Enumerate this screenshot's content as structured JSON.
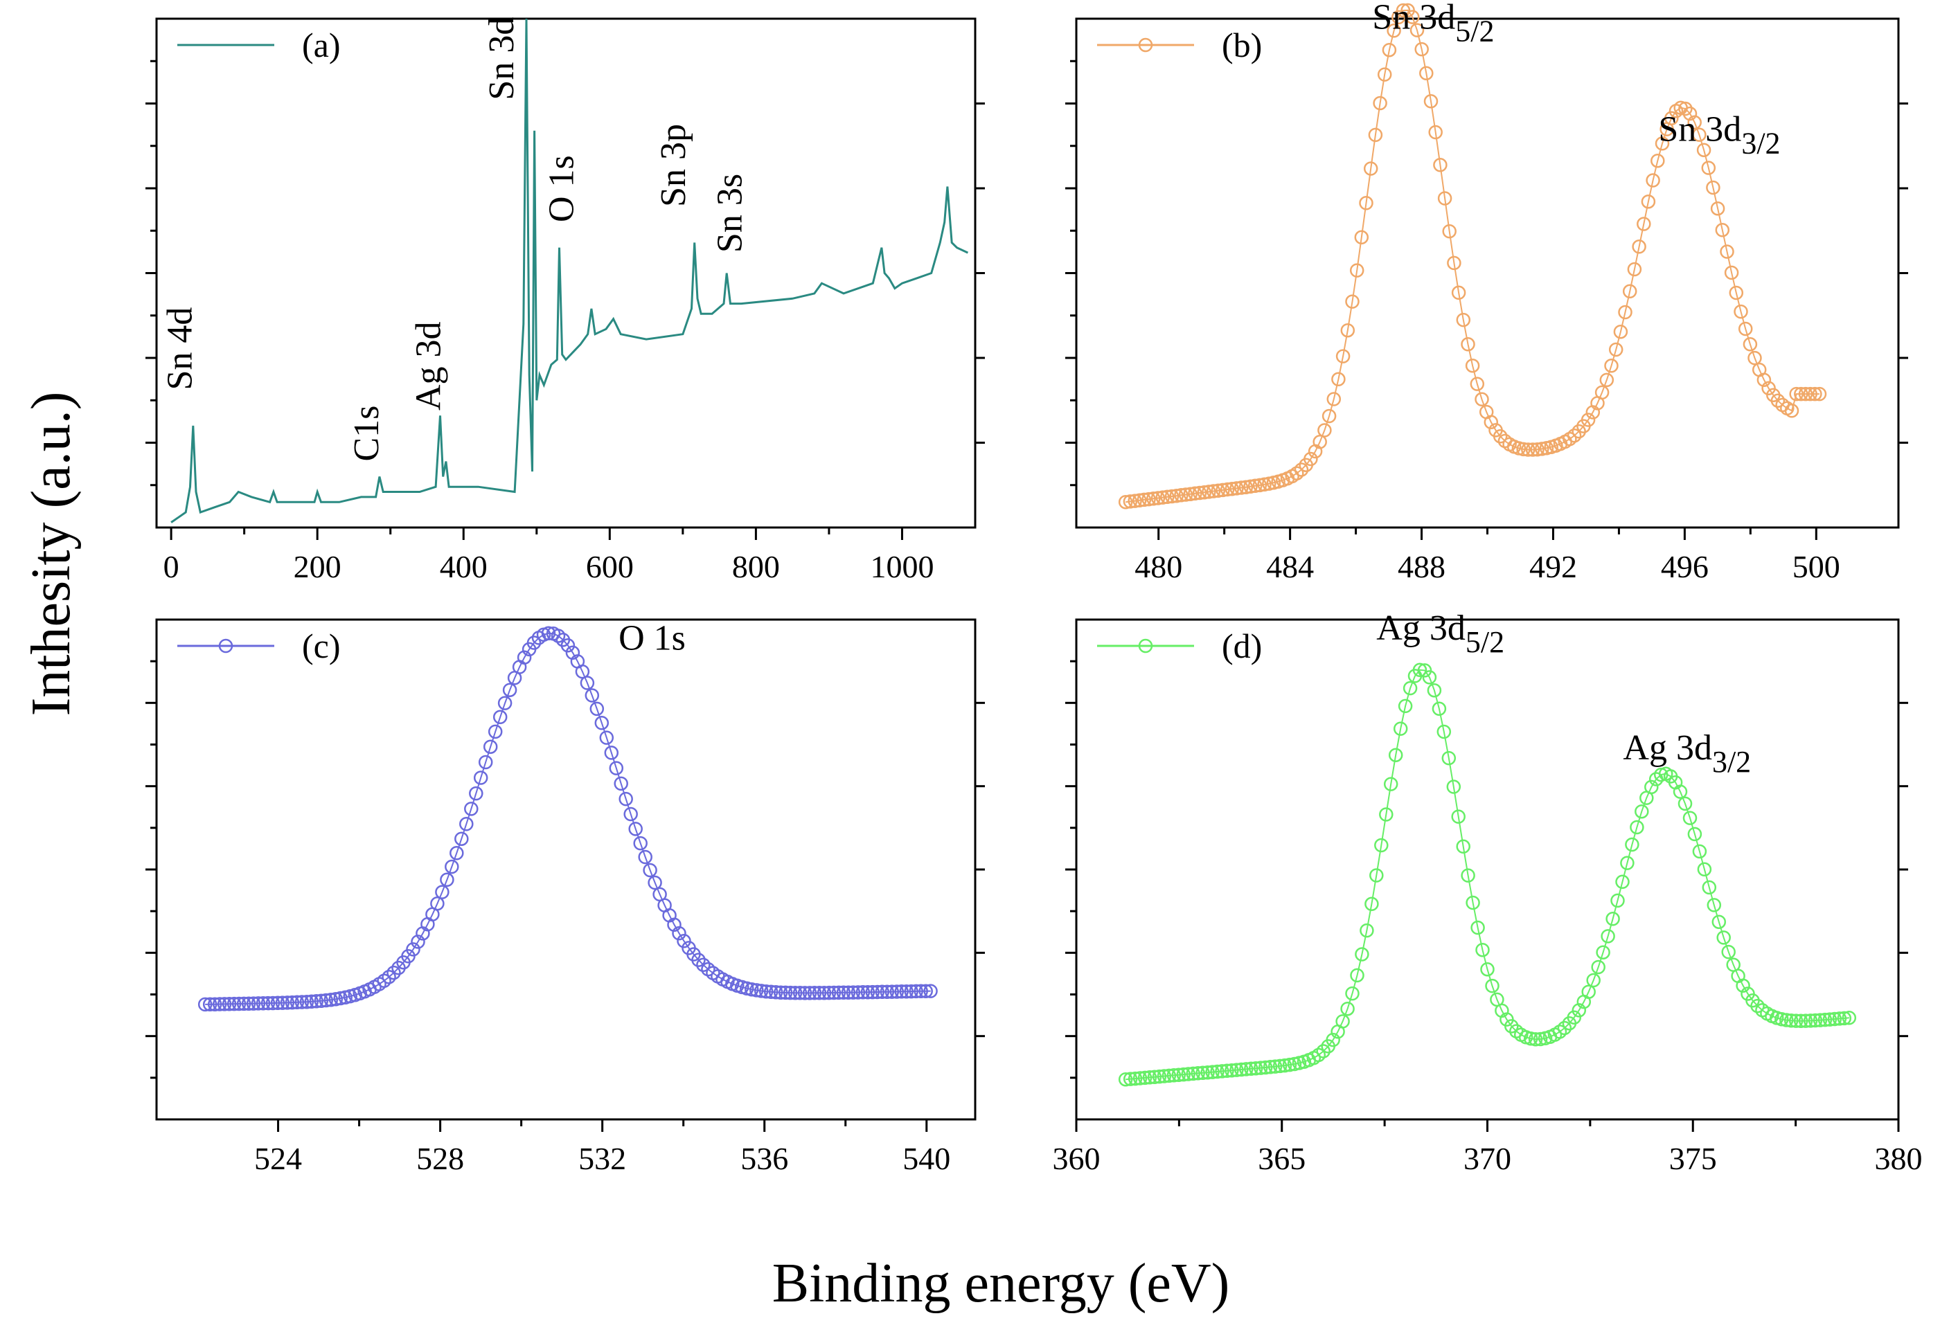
{
  "figure": {
    "ylabel": "Inthesity (a.u.)",
    "xlabel": "Binding energy (eV)"
  },
  "chart_data": [
    {
      "id": "a",
      "type": "line",
      "legend": "(a)",
      "color": "#2a8a82",
      "xlim": [
        -20,
        1100
      ],
      "ylim": [
        0,
        1
      ],
      "xticks": [
        "0",
        "200",
        "400",
        "600",
        "800",
        "1000"
      ],
      "xtick_values": [
        0,
        200,
        400,
        600,
        800,
        1000
      ],
      "x": [
        0,
        10,
        20,
        26,
        30,
        34,
        40,
        60,
        80,
        92,
        110,
        135,
        140,
        145,
        170,
        196,
        200,
        205,
        230,
        260,
        280,
        285,
        290,
        310,
        340,
        362,
        368,
        372,
        376,
        380,
        420,
        470,
        482,
        486,
        490,
        494,
        497,
        500,
        504,
        510,
        520,
        528,
        531,
        535,
        540,
        560,
        570,
        575,
        580,
        595,
        605,
        615,
        650,
        700,
        712,
        716,
        720,
        725,
        740,
        756,
        760,
        765,
        780,
        850,
        880,
        890,
        920,
        960,
        972,
        976,
        982,
        990,
        1000,
        1020,
        1040,
        1052,
        1058,
        1062,
        1068,
        1075,
        1090
      ],
      "y": [
        0.01,
        0.02,
        0.03,
        0.08,
        0.2,
        0.07,
        0.03,
        0.04,
        0.05,
        0.07,
        0.06,
        0.05,
        0.07,
        0.05,
        0.05,
        0.05,
        0.07,
        0.05,
        0.05,
        0.06,
        0.06,
        0.1,
        0.07,
        0.07,
        0.07,
        0.08,
        0.22,
        0.1,
        0.13,
        0.08,
        0.08,
        0.07,
        0.4,
        1.0,
        0.3,
        0.11,
        0.78,
        0.25,
        0.3,
        0.28,
        0.32,
        0.33,
        0.55,
        0.34,
        0.33,
        0.36,
        0.38,
        0.43,
        0.38,
        0.39,
        0.41,
        0.38,
        0.37,
        0.38,
        0.43,
        0.56,
        0.45,
        0.42,
        0.42,
        0.44,
        0.5,
        0.44,
        0.44,
        0.45,
        0.46,
        0.48,
        0.46,
        0.48,
        0.55,
        0.5,
        0.49,
        0.47,
        0.48,
        0.49,
        0.5,
        0.56,
        0.6,
        0.67,
        0.56,
        0.55,
        0.54
      ],
      "annotations": [
        {
          "text": "Sn 4d",
          "x": 28,
          "y": 0.27,
          "rotate": -90
        },
        {
          "text": "C1s",
          "x": 283,
          "y": 0.13,
          "rotate": -90
        },
        {
          "text": "Ag 3d",
          "x": 368,
          "y": 0.23,
          "rotate": -90
        },
        {
          "text": "Sn 3d",
          "x": 468,
          "y": 0.84,
          "rotate": -90
        },
        {
          "text": "O 1s",
          "x": 550,
          "y": 0.6,
          "rotate": -90
        },
        {
          "text": "Sn 3p",
          "x": 703,
          "y": 0.63,
          "rotate": -90
        },
        {
          "text": "Sn 3s",
          "x": 780,
          "y": 0.54,
          "rotate": -90
        }
      ]
    },
    {
      "id": "b",
      "type": "scatter-line",
      "legend": "(b)",
      "color": "#f0a868",
      "xlim": [
        477.5,
        502.5
      ],
      "ylim": [
        0,
        1
      ],
      "xticks": [
        "480",
        "484",
        "488",
        "492",
        "496",
        "500"
      ],
      "xtick_values": [
        480,
        484,
        488,
        492,
        496,
        500
      ],
      "x_range": [
        479,
        500.1
      ],
      "baseline": 0.05,
      "slope": 0.008,
      "peaks": [
        {
          "center": 487.5,
          "height": 0.9,
          "width": 1.15
        },
        {
          "center": 495.9,
          "height": 0.64,
          "width": 1.25
        }
      ],
      "tail": {
        "start": 499.3,
        "level": 0.1
      },
      "annotations": [
        {
          "text": "Sn 3d",
          "sub": "5/2",
          "x": 486.5,
          "y": 0.98,
          "rotate": 0
        },
        {
          "text": "Sn 3d",
          "sub": "3/2",
          "x": 495.2,
          "y": 0.76,
          "rotate": 0
        }
      ]
    },
    {
      "id": "c",
      "type": "scatter-line",
      "legend": "(c)",
      "color": "#6a6adc",
      "xlim": [
        521,
        541.2
      ],
      "ylim": [
        0,
        1
      ],
      "xticks": [
        "524",
        "528",
        "532",
        "536",
        "540"
      ],
      "xtick_values": [
        524,
        528,
        532,
        536,
        540
      ],
      "x_range": [
        522.2,
        540.1
      ],
      "baseline": 0.23,
      "slope": 0.0015,
      "peaks": [
        {
          "center": 530.7,
          "height": 0.73,
          "width": 1.7
        }
      ],
      "annotations": [
        {
          "text": "O 1s",
          "x": 532.4,
          "y": 0.94,
          "rotate": 0
        }
      ]
    },
    {
      "id": "d",
      "type": "scatter-line",
      "legend": "(d)",
      "color": "#66ee66",
      "xlim": [
        360,
        380
      ],
      "ylim": [
        0,
        1
      ],
      "xticks": [
        "360",
        "365",
        "370",
        "375",
        "380"
      ],
      "xtick_values": [
        360,
        365,
        370,
        375,
        380
      ],
      "x_range": [
        361.2,
        378.8
      ],
      "baseline": 0.08,
      "slope": 0.007,
      "peaks": [
        {
          "center": 368.4,
          "height": 0.77,
          "width": 0.9
        },
        {
          "center": 374.3,
          "height": 0.52,
          "width": 1.0
        }
      ],
      "annotations": [
        {
          "text": "Ag 3d",
          "sub": "5/2",
          "x": 367.3,
          "y": 0.96,
          "rotate": 0
        },
        {
          "text": "Ag 3d",
          "sub": "3/2",
          "x": 373.3,
          "y": 0.72,
          "rotate": 0
        }
      ]
    }
  ]
}
